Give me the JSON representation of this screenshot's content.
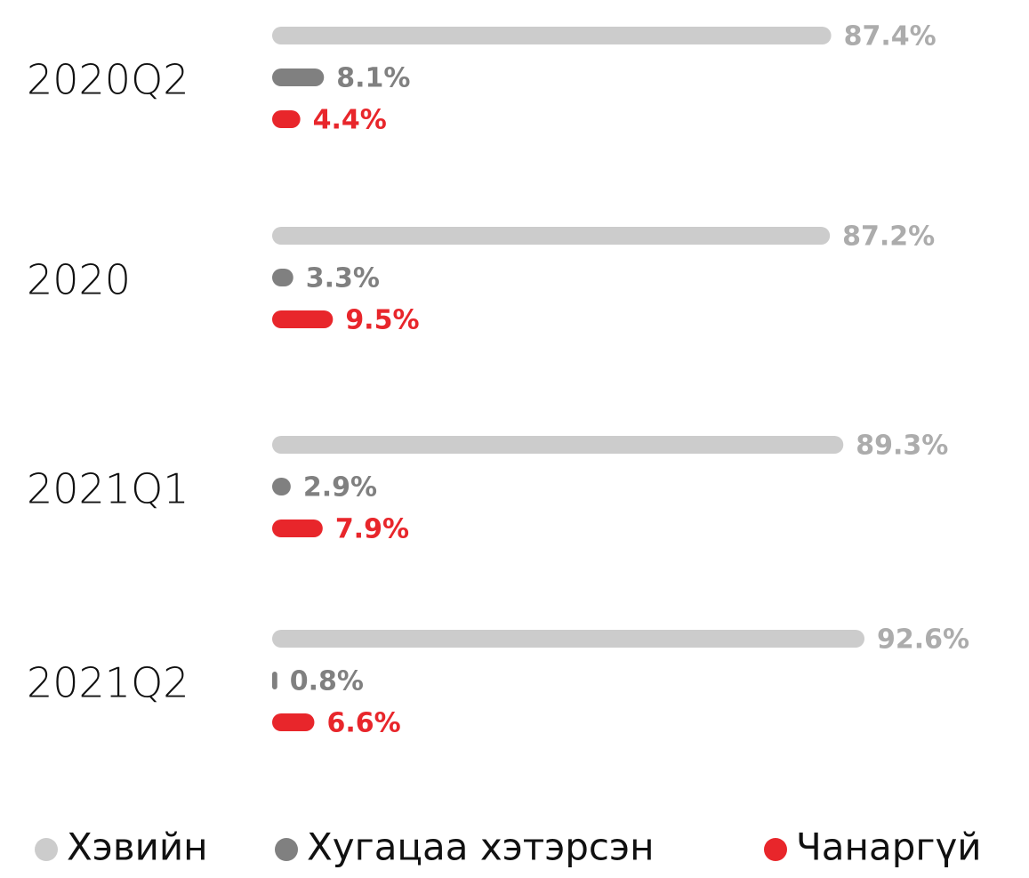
{
  "chart_data": {
    "type": "bar",
    "orientation": "horizontal",
    "categories": [
      "2020Q2",
      "2020",
      "2021Q1",
      "2021Q2"
    ],
    "series": [
      {
        "name": "Хэвийн",
        "color": "#cccccc",
        "label_color": "#acacac",
        "values": [
          87.4,
          87.2,
          89.3,
          92.6
        ],
        "value_labels": [
          "87.4%",
          "87.2%",
          "89.3%",
          "92.6%"
        ]
      },
      {
        "name": "Хугацаа хэтэрсэн",
        "color": "#808080",
        "label_color": "#808080",
        "values": [
          8.1,
          3.3,
          2.9,
          0.8
        ],
        "value_labels": [
          "8.1%",
          "3.3%",
          "2.9%",
          "0.8%"
        ]
      },
      {
        "name": "Чанаргүй",
        "color": "#e8262b",
        "label_color": "#e8262b",
        "values": [
          4.4,
          9.5,
          7.9,
          6.6
        ],
        "value_labels": [
          "4.4%",
          "9.5%",
          "7.9%",
          "6.6%"
        ]
      }
    ],
    "legend": "bottom"
  }
}
